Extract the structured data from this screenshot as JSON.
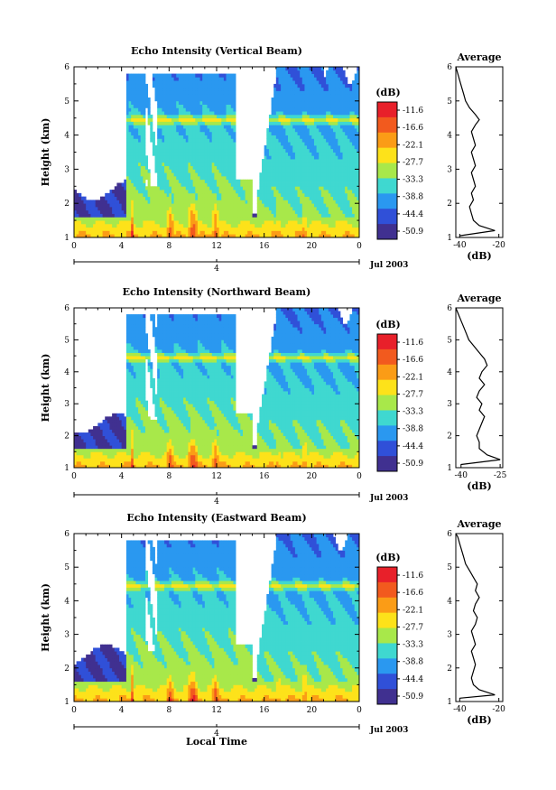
{
  "figure": {
    "xlabel": "Local Time",
    "ylabel": "Height (km)",
    "date_label": "Jul 2003",
    "day_label": "4",
    "colorbar_unit": "(dB)",
    "avg_title": "Average",
    "avg_xlabel": "(dB)"
  },
  "chart_data": [
    {
      "type": "heatmap",
      "title": "Echo Intensity (Vertical Beam)",
      "ylabel": "Height (km)",
      "x_ticks": [
        "0",
        "4",
        "8",
        "12",
        "16",
        "20",
        "0"
      ],
      "y_ticks": [
        "1",
        "2",
        "3",
        "4",
        "5",
        "6"
      ],
      "xlim": [
        0,
        24
      ],
      "ylim": [
        1,
        6
      ],
      "colorbar": {
        "label": "(dB)",
        "ticks": [
          "-11.6",
          "-16.6",
          "-22.1",
          "-27.7",
          "-33.3",
          "-38.8",
          "-44.4",
          "-50.9"
        ],
        "colors": [
          "#e8202a",
          "#f25a1e",
          "#fb9c16",
          "#fde21a",
          "#a8e84a",
          "#3fd8d0",
          "#2a98f0",
          "#3050d8",
          "#403090"
        ]
      },
      "average": {
        "title": "Average",
        "xlabel": "(dB)",
        "x_ticks": [
          "-40",
          "-20"
        ],
        "xlim": [
          -42,
          -18
        ],
        "height": [
          1.05,
          1.2,
          1.35,
          1.5,
          1.7,
          1.9,
          2.1,
          2.3,
          2.5,
          2.7,
          2.9,
          3.1,
          3.3,
          3.5,
          3.7,
          3.9,
          4.1,
          4.3,
          4.45,
          4.6,
          4.8,
          5.0,
          5.2,
          5.4,
          5.6,
          5.8,
          6.0
        ],
        "db": [
          -40,
          -22,
          -30,
          -33,
          -34,
          -35,
          -33,
          -34,
          -32,
          -33,
          -34,
          -32,
          -33,
          -34,
          -32,
          -33,
          -34,
          -32,
          -30,
          -32,
          -35,
          -37,
          -38,
          -39,
          -40,
          -41,
          -42
        ]
      }
    },
    {
      "type": "heatmap",
      "title": "Echo Intensity (Northward Beam)",
      "ylabel": "Height (km)",
      "x_ticks": [
        "0",
        "4",
        "8",
        "12",
        "16",
        "20",
        "0"
      ],
      "y_ticks": [
        "1",
        "2",
        "3",
        "4",
        "5",
        "6"
      ],
      "xlim": [
        0,
        24
      ],
      "ylim": [
        1,
        6
      ],
      "colorbar": {
        "label": "(dB)",
        "ticks": [
          "-11.6",
          "-16.6",
          "-22.1",
          "-27.7",
          "-33.3",
          "-38.8",
          "-44.4",
          "-50.9"
        ],
        "colors": [
          "#e8202a",
          "#f25a1e",
          "#fb9c16",
          "#fde21a",
          "#a8e84a",
          "#3fd8d0",
          "#2a98f0",
          "#3050d8",
          "#403090"
        ]
      },
      "average": {
        "title": "Average",
        "xlabel": "(dB)",
        "x_ticks": [
          "-40",
          "-25"
        ],
        "xlim": [
          -42,
          -24
        ],
        "height": [
          1.1,
          1.25,
          1.4,
          1.6,
          1.8,
          2.0,
          2.2,
          2.4,
          2.6,
          2.8,
          3.0,
          3.2,
          3.4,
          3.6,
          3.8,
          4.0,
          4.2,
          4.4,
          4.6,
          4.8,
          5.0,
          5.2,
          5.4,
          5.6,
          5.8,
          6.0
        ],
        "db": [
          -40,
          -25,
          -30,
          -33,
          -33,
          -34,
          -33,
          -32,
          -31,
          -33,
          -32,
          -34,
          -33,
          -31,
          -33,
          -32,
          -30,
          -31,
          -33,
          -35,
          -37,
          -38,
          -39,
          -40,
          -41,
          -42
        ]
      }
    },
    {
      "type": "heatmap",
      "title": "Echo Intensity (Eastward Beam)",
      "ylabel": "Height (km)",
      "xlabel": "Local Time",
      "x_ticks": [
        "0",
        "4",
        "8",
        "12",
        "16",
        "20",
        "0"
      ],
      "y_ticks": [
        "1",
        "2",
        "3",
        "4",
        "5",
        "6"
      ],
      "xlim": [
        0,
        24
      ],
      "ylim": [
        1,
        6
      ],
      "colorbar": {
        "label": "(dB)",
        "ticks": [
          "-11.6",
          "-16.6",
          "-22.1",
          "-27.7",
          "-33.3",
          "-38.8",
          "-44.4",
          "-50.9"
        ],
        "colors": [
          "#e8202a",
          "#f25a1e",
          "#fb9c16",
          "#fde21a",
          "#a8e84a",
          "#3fd8d0",
          "#2a98f0",
          "#3050d8",
          "#403090"
        ]
      },
      "average": {
        "title": "Average",
        "xlabel": "(dB)",
        "x_ticks": [
          "-40",
          "-20"
        ],
        "xlim": [
          -42,
          -18
        ],
        "height": [
          1.1,
          1.2,
          1.35,
          1.5,
          1.7,
          1.9,
          2.1,
          2.3,
          2.5,
          2.7,
          2.9,
          3.1,
          3.3,
          3.5,
          3.7,
          3.9,
          4.1,
          4.3,
          4.5,
          4.7,
          4.9,
          5.1,
          5.3,
          5.5,
          5.7,
          5.9,
          6.0
        ],
        "db": [
          -40,
          -22,
          -30,
          -33,
          -34,
          -33,
          -32,
          -33,
          -34,
          -32,
          -33,
          -34,
          -32,
          -31,
          -33,
          -32,
          -30,
          -32,
          -31,
          -33,
          -35,
          -37,
          -38,
          -39,
          -40,
          -41,
          -42
        ]
      }
    }
  ]
}
